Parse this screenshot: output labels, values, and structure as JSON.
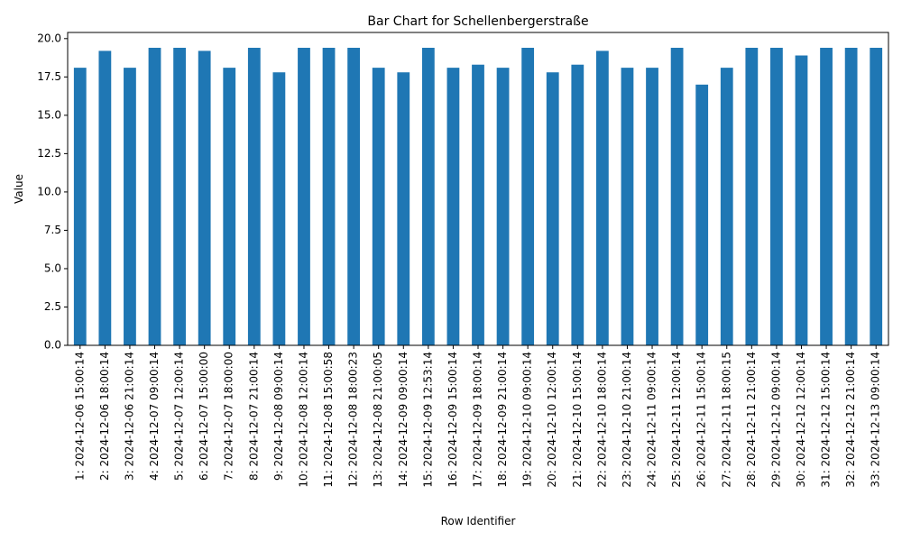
{
  "chart_data": {
    "type": "bar",
    "title": "Bar Chart for Schellenbergerstraße",
    "xlabel": "Row Identifier",
    "ylabel": "Value",
    "ylim": [
      0,
      20.4
    ],
    "yticks": [
      "0.0",
      "2.5",
      "5.0",
      "7.5",
      "10.0",
      "12.5",
      "15.0",
      "17.5",
      "20.0"
    ],
    "legend": "none",
    "grid": false,
    "bar_color": "#1f77b4",
    "categories": [
      "1: 2024-12-06 15:00:14",
      "2: 2024-12-06 18:00:14",
      "3: 2024-12-06 21:00:14",
      "4: 2024-12-07 09:00:14",
      "5: 2024-12-07 12:00:14",
      "6: 2024-12-07 15:00:00",
      "7: 2024-12-07 18:00:00",
      "8: 2024-12-07 21:00:14",
      "9: 2024-12-08 09:00:14",
      "10: 2024-12-08 12:00:14",
      "11: 2024-12-08 15:00:58",
      "12: 2024-12-08 18:00:23",
      "13: 2024-12-08 21:00:05",
      "14: 2024-12-09 09:00:14",
      "15: 2024-12-09 12:53:14",
      "16: 2024-12-09 15:00:14",
      "17: 2024-12-09 18:00:14",
      "18: 2024-12-09 21:00:14",
      "19: 2024-12-10 09:00:14",
      "20: 2024-12-10 12:00:14",
      "21: 2024-12-10 15:00:14",
      "22: 2024-12-10 18:00:14",
      "23: 2024-12-10 21:00:14",
      "24: 2024-12-11 09:00:14",
      "25: 2024-12-11 12:00:14",
      "26: 2024-12-11 15:00:14",
      "27: 2024-12-11 18:00:15",
      "28: 2024-12-11 21:00:14",
      "29: 2024-12-12 09:00:14",
      "30: 2024-12-12 12:00:14",
      "31: 2024-12-12 15:00:14",
      "32: 2024-12-12 21:00:14",
      "33: 2024-12-13 09:00:14"
    ],
    "values": [
      18.1,
      19.2,
      18.1,
      19.4,
      19.4,
      19.2,
      18.1,
      19.4,
      17.8,
      19.4,
      19.4,
      19.4,
      18.1,
      17.8,
      19.4,
      18.1,
      18.3,
      18.1,
      19.4,
      17.8,
      18.3,
      19.2,
      18.1,
      18.1,
      19.4,
      17.0,
      18.1,
      19.4,
      19.4,
      18.9,
      19.4,
      19.4,
      19.4
    ]
  }
}
